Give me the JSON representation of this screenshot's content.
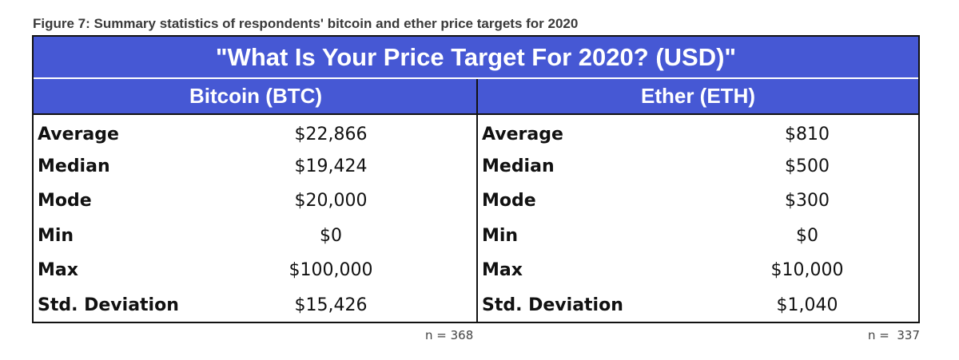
{
  "caption": "Figure 7: Summary statistics of respondents' bitcoin and ether price targets for 2020",
  "chart_data": {
    "type": "table",
    "title": "\"What Is Your Price Target For 2020? (USD)\"",
    "columns": [
      {
        "header": "Bitcoin (BTC)",
        "n_note": "n = 368",
        "rows": [
          {
            "label": "Average",
            "value": "$22,866"
          },
          {
            "label": "Median",
            "value": "$19,424"
          },
          {
            "label": "Mode",
            "value": "$20,000"
          },
          {
            "label": "Min",
            "value": "$0"
          },
          {
            "label": "Max",
            "value": "$100,000"
          },
          {
            "label": "Std. Deviation",
            "value": "$15,426"
          }
        ]
      },
      {
        "header": "Ether (ETH)",
        "n_note": "n =  337",
        "rows": [
          {
            "label": "Average",
            "value": "$810"
          },
          {
            "label": "Median",
            "value": "$500"
          },
          {
            "label": "Mode",
            "value": "$300"
          },
          {
            "label": "Min",
            "value": "$0"
          },
          {
            "label": "Max",
            "value": "$10,000"
          },
          {
            "label": "Std. Deviation",
            "value": "$1,040"
          }
        ]
      }
    ]
  },
  "colors": {
    "header_bg": "#4658d4",
    "header_text": "#ffffff",
    "border": "#111111"
  }
}
